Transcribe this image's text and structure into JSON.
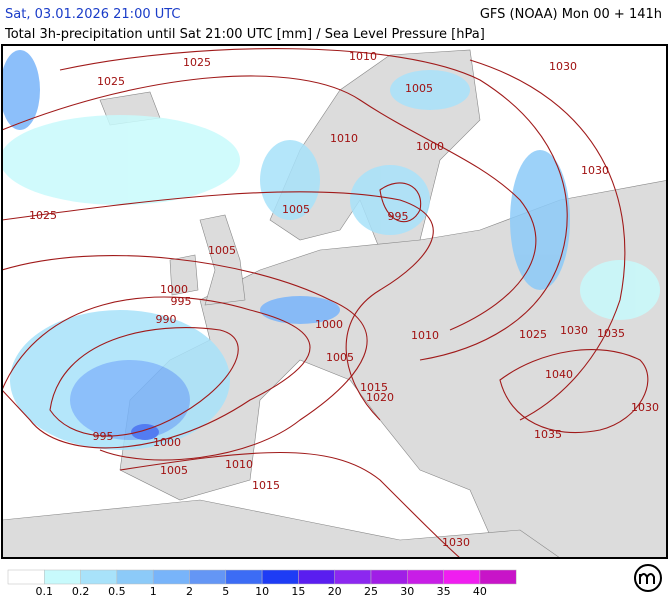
{
  "header": {
    "left": "Sat, 03.01.2026 21:00 UTC",
    "right": "GFS (NOAA) Mon 00 + 141h",
    "subtitle": "Total 3h-precipitation until Sat 21:00 UTC [mm] / Sea Level Pressure [hPa]"
  },
  "isobar_labels": [
    1025,
    1010,
    1030,
    1025,
    1005,
    1010,
    1000,
    1030,
    1025,
    1005,
    995,
    1005,
    1000,
    995,
    990,
    1000,
    1010,
    1025,
    1030,
    1035,
    1005,
    1040,
    1015,
    1020,
    1030,
    995,
    1000,
    1035,
    1005,
    1010,
    1015,
    1030
  ],
  "legend": {
    "colors": [
      "#ffffff",
      "#c8fafc",
      "#a8e2fa",
      "#8ccaf8",
      "#78b4fa",
      "#6496f5",
      "#3c6cf5",
      "#1e3cf5",
      "#5a1ef0",
      "#8c28f0",
      "#a01ee6",
      "#c81ee6",
      "#f01ef0",
      "#c814c8"
    ],
    "labels": [
      0.1,
      0.2,
      0.5,
      1,
      2,
      5,
      10,
      15,
      20,
      25,
      30,
      35,
      40
    ]
  }
}
